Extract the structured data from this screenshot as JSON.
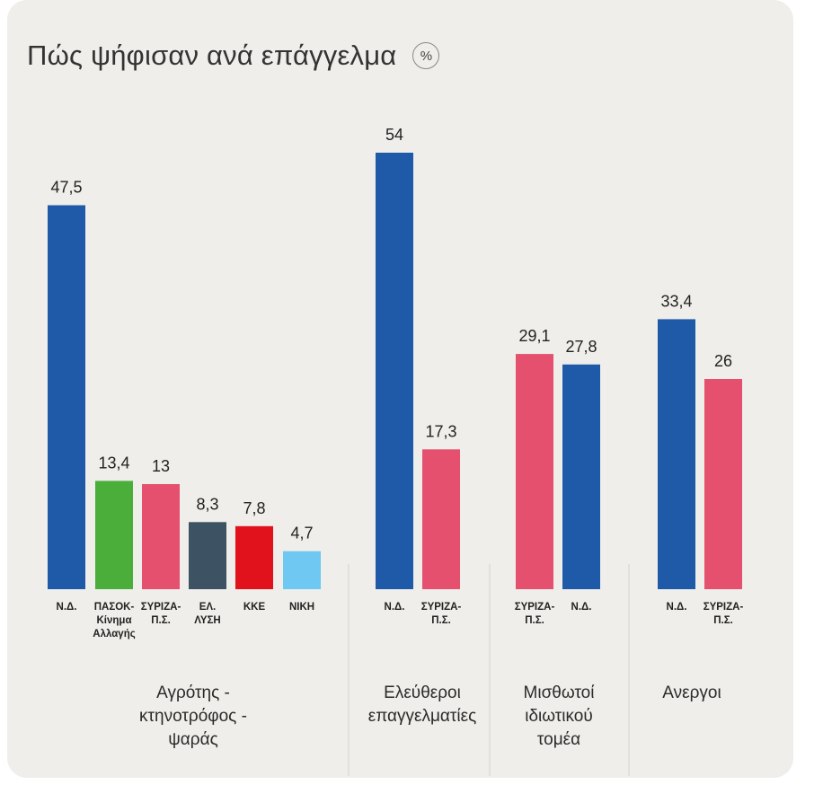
{
  "chart_data": {
    "type": "bar",
    "title": "Πώς ψήφισαν ανά επάγγελμα",
    "unit": "%",
    "groups": [
      {
        "label": [
          "Αγρότης -",
          "κτηνοτρόφος -",
          "ψαράς"
        ],
        "bars": [
          {
            "category": [
              "Ν.Δ."
            ],
            "value": 47.5,
            "label": "47,5",
            "color": "#1f5aa8"
          },
          {
            "category": [
              "ΠΑΣΟΚ-",
              "Κίνημα",
              "Αλλαγής"
            ],
            "value": 13.4,
            "label": "13,4",
            "color": "#4bad3a"
          },
          {
            "category": [
              "ΣΥΡΙΖΑ-",
              "Π.Σ."
            ],
            "value": 13,
            "label": "13",
            "color": "#e4506e"
          },
          {
            "category": [
              "ΕΛ.",
              "ΛΥΣΗ"
            ],
            "value": 8.3,
            "label": "8,3",
            "color": "#3d5263"
          },
          {
            "category": [
              "ΚΚΕ"
            ],
            "value": 7.8,
            "label": "7,8",
            "color": "#e2121c"
          },
          {
            "category": [
              "ΝΙΚΗ"
            ],
            "value": 4.7,
            "label": "4,7",
            "color": "#6ec8f2"
          }
        ]
      },
      {
        "label": [
          "Ελεύθεροι",
          "επαγγελματίες"
        ],
        "bars": [
          {
            "category": [
              "Ν.Δ."
            ],
            "value": 54,
            "label": "54",
            "color": "#1f5aa8"
          },
          {
            "category": [
              "ΣΥΡΙΖΑ-",
              "Π.Σ."
            ],
            "value": 17.3,
            "label": "17,3",
            "color": "#e4506e"
          }
        ]
      },
      {
        "label": [
          "Μισθωτοί",
          "ιδιωτικού",
          "τομέα"
        ],
        "bars": [
          {
            "category": [
              "ΣΥΡΙΖΑ-",
              "Π.Σ."
            ],
            "value": 29.1,
            "label": "29,1",
            "color": "#e4506e"
          },
          {
            "category": [
              "Ν.Δ."
            ],
            "value": 27.8,
            "label": "27,8",
            "color": "#1f5aa8"
          }
        ]
      },
      {
        "label": [
          "Ανεργοι"
        ],
        "bars": [
          {
            "category": [
              "Ν.Δ."
            ],
            "value": 33.4,
            "label": "33,4",
            "color": "#1f5aa8"
          },
          {
            "category": [
              "ΣΥΡΙΖΑ-",
              "Π.Σ."
            ],
            "value": 26,
            "label": "26",
            "color": "#e4506e"
          }
        ]
      }
    ]
  }
}
